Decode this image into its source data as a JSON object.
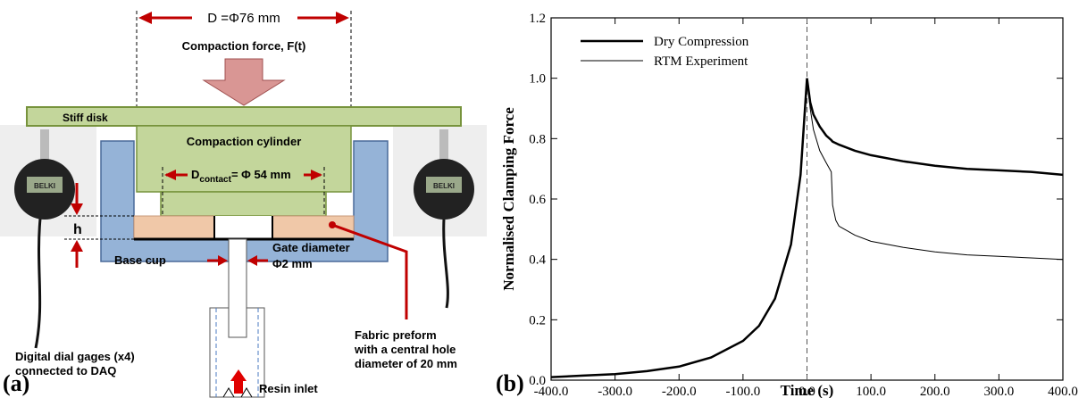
{
  "panel_a": {
    "label": "(a)",
    "outer_diameter": "D =Φ76 mm",
    "force": "Compaction force, F(t)",
    "stiff_disk": "Stiff disk",
    "cylinder": "Compaction cylinder",
    "contact": {
      "main": "D",
      "sub": "contact",
      "rest": "= Φ 54 mm"
    },
    "h": "h",
    "base_cup": "Base cup",
    "gate": [
      "Gate diameter",
      "Φ2 mm"
    ],
    "fabric": [
      "Fabric preform",
      "with a central hole",
      "diameter of 20 mm"
    ],
    "gages": [
      "Digital dial gages (x4)",
      "connected to DAQ"
    ],
    "gauge_display": "BELKI",
    "inlet": "Resin inlet"
  },
  "chart_data": {
    "type": "line",
    "panel_label": "(b)",
    "xlabel": "Time (s)",
    "ylabel": "Normalised Clamping Force",
    "x": [
      -400,
      -350,
      -300,
      -250,
      -200,
      -150,
      -100,
      -75,
      -50,
      -25,
      -10,
      0,
      5,
      10,
      20,
      30,
      38,
      40,
      45,
      50,
      75,
      100,
      150,
      200,
      250,
      300,
      350,
      400
    ],
    "series": [
      {
        "name": "Dry Compression",
        "color": "#000000",
        "width": 2.5,
        "values": [
          0.01,
          0.015,
          0.02,
          0.03,
          0.045,
          0.075,
          0.13,
          0.18,
          0.27,
          0.45,
          0.68,
          1.0,
          0.92,
          0.88,
          0.84,
          0.81,
          0.795,
          0.79,
          0.785,
          0.78,
          0.76,
          0.745,
          0.725,
          0.71,
          0.7,
          0.695,
          0.69,
          0.68
        ]
      },
      {
        "name": "RTM Experiment",
        "color": "#000000",
        "width": 1,
        "values": [
          0.01,
          0.015,
          0.02,
          0.03,
          0.045,
          0.075,
          0.13,
          0.18,
          0.27,
          0.45,
          0.68,
          1.0,
          0.9,
          0.83,
          0.76,
          0.72,
          0.69,
          0.58,
          0.53,
          0.51,
          0.48,
          0.46,
          0.44,
          0.425,
          0.415,
          0.41,
          0.405,
          0.4
        ]
      }
    ],
    "xlim": [
      -400,
      400
    ],
    "xticks": [
      {
        "value": -400,
        "label": "-400.0"
      },
      {
        "value": -300,
        "label": "-300.0"
      },
      {
        "value": -200,
        "label": "-200.0"
      },
      {
        "value": -100,
        "label": "-100.0"
      },
      {
        "value": 0,
        "label": "0.0"
      },
      {
        "value": 100,
        "label": "100.0"
      },
      {
        "value": 200,
        "label": "200.0"
      },
      {
        "value": 300,
        "label": "300.0"
      },
      {
        "value": 400,
        "label": "400.0"
      }
    ],
    "ylim": [
      0,
      1.2
    ],
    "yticks": [
      {
        "value": 0,
        "label": "0.0"
      },
      {
        "value": 0.2,
        "label": "0.2"
      },
      {
        "value": 0.4,
        "label": "0.4"
      },
      {
        "value": 0.6,
        "label": "0.6"
      },
      {
        "value": 0.8,
        "label": "0.8"
      },
      {
        "value": 1.0,
        "label": "1.0"
      },
      {
        "value": 1.2,
        "label": "1.2"
      }
    ],
    "vline": 0,
    "legend": "upper left"
  }
}
